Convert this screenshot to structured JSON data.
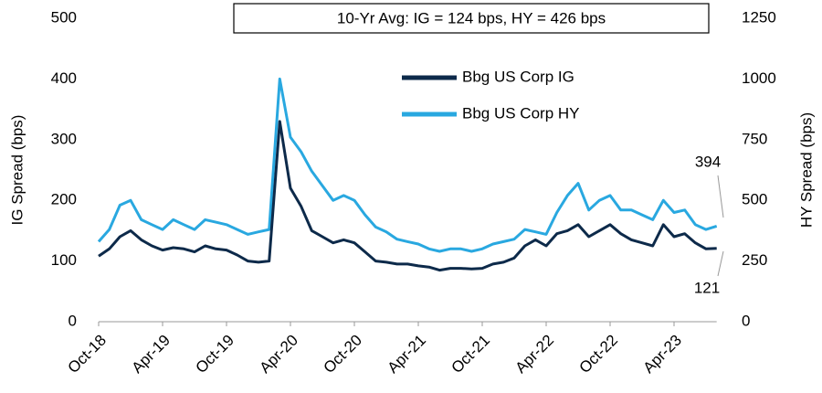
{
  "chart_data": {
    "type": "line",
    "annotations": [
      "10-Yr Avg: IG = 124 bps, HY = 426 bps",
      "394",
      "121"
    ],
    "ylabel": "IG Spread (bps)",
    "y2label": "HY Spread (bps)",
    "categories": [
      "Oct-18",
      null,
      null,
      null,
      null,
      null,
      "Apr-19",
      null,
      null,
      null,
      null,
      null,
      "Oct-19",
      null,
      null,
      null,
      null,
      null,
      "Apr-20",
      null,
      null,
      null,
      null,
      null,
      "Oct-20",
      null,
      null,
      null,
      null,
      null,
      "Apr-21",
      null,
      null,
      null,
      null,
      null,
      "Oct-21",
      null,
      null,
      null,
      null,
      null,
      "Apr-22",
      null,
      null,
      null,
      null,
      null,
      "Oct-22",
      null,
      null,
      null,
      null,
      null,
      "Apr-23",
      null,
      null,
      null,
      null
    ],
    "series": [
      {
        "name": "Bbg US Corp IG",
        "color": "#0d2a4a",
        "values": [
          108,
          120,
          140,
          150,
          135,
          125,
          118,
          122,
          120,
          115,
          125,
          120,
          118,
          110,
          100,
          98,
          100,
          330,
          220,
          190,
          150,
          140,
          130,
          135,
          130,
          115,
          100,
          98,
          95,
          95,
          92,
          90,
          85,
          88,
          88,
          87,
          88,
          95,
          98,
          105,
          125,
          135,
          125,
          145,
          150,
          160,
          140,
          150,
          160,
          145,
          135,
          130,
          125,
          160,
          140,
          145,
          130,
          120,
          121
        ]
      },
      {
        "name": "Bbg US Corp HY",
        "color": "#29a8e0",
        "axis": "y2",
        "values": [
          330,
          380,
          480,
          500,
          420,
          400,
          380,
          420,
          400,
          380,
          420,
          410,
          400,
          380,
          360,
          370,
          380,
          1000,
          760,
          700,
          620,
          560,
          500,
          520,
          500,
          440,
          390,
          370,
          340,
          330,
          320,
          300,
          290,
          300,
          300,
          290,
          300,
          320,
          330,
          340,
          380,
          370,
          360,
          450,
          520,
          570,
          460,
          500,
          520,
          460,
          460,
          440,
          420,
          500,
          450,
          460,
          400,
          380,
          394
        ]
      }
    ],
    "ylim": [
      0,
      500
    ],
    "yticks": [
      0,
      100,
      200,
      300,
      400,
      500
    ],
    "y2lim": [
      0,
      1250
    ],
    "y2ticks": [
      0,
      250,
      500,
      750,
      1000,
      1250
    ]
  }
}
